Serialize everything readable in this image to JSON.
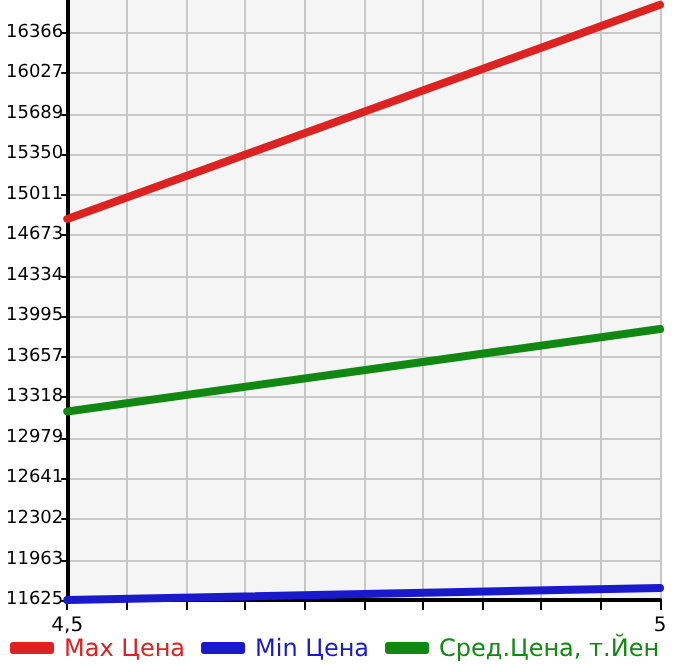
{
  "chart_data": {
    "type": "line",
    "x": [
      4.5,
      5
    ],
    "series": [
      {
        "name": "Max Цена",
        "color": "#dd2222",
        "values": [
          14810,
          16600
        ]
      },
      {
        "name": "Min Цена",
        "color": "#1a1acc",
        "values": [
          11625,
          11725
        ]
      },
      {
        "name": "Сред.Цена, т.Йен",
        "color": "#118811",
        "values": [
          13200,
          13890
        ]
      }
    ],
    "xlim": [
      4.5,
      5
    ],
    "xticks": [
      {
        "value": 4.5,
        "label": "4,5"
      },
      {
        "value": 4.55,
        "label": null
      },
      {
        "value": 4.6,
        "label": null
      },
      {
        "value": 4.65,
        "label": null
      },
      {
        "value": 4.7,
        "label": null
      },
      {
        "value": 4.75,
        "label": null
      },
      {
        "value": 4.8,
        "label": null
      },
      {
        "value": 4.85,
        "label": null
      },
      {
        "value": 4.9,
        "label": null
      },
      {
        "value": 4.95,
        "label": null
      },
      {
        "value": 5,
        "label": "5"
      }
    ],
    "ylim": [
      11625,
      16640
    ],
    "yticks": [
      11625,
      11963,
      12302,
      12641,
      12979,
      13318,
      13657,
      13995,
      14334,
      14673,
      15011,
      15350,
      15689,
      16027,
      16366
    ],
    "grid": true,
    "legend": "bottom",
    "marker": "none",
    "line_style": "solid"
  }
}
